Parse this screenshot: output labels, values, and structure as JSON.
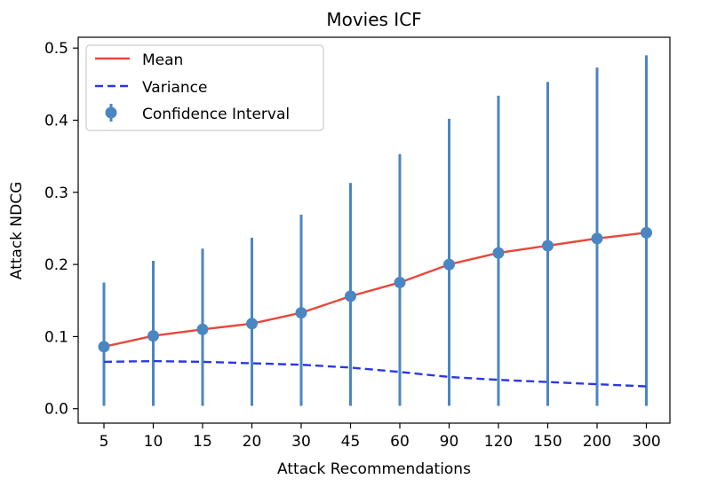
{
  "chart_data": {
    "type": "line",
    "title": "Movies ICF",
    "xlabel": "Attack Recommendations",
    "ylabel": "Attack NDCG",
    "categories": [
      "5",
      "10",
      "15",
      "20",
      "30",
      "45",
      "60",
      "90",
      "120",
      "150",
      "200",
      "300"
    ],
    "ylim": [
      -0.02,
      0.515
    ],
    "yticks": [
      "0.0",
      "0.1",
      "0.2",
      "0.3",
      "0.4",
      "0.5"
    ],
    "ytick_values": [
      0.0,
      0.1,
      0.2,
      0.3,
      0.4,
      0.5
    ],
    "grid": false,
    "legend_position": "top-left",
    "series": [
      {
        "name": "Mean",
        "style": "solid",
        "color": "#e8483a",
        "values": [
          0.086,
          0.101,
          0.11,
          0.118,
          0.133,
          0.156,
          0.175,
          0.2,
          0.216,
          0.226,
          0.236,
          0.244
        ]
      },
      {
        "name": "Variance",
        "style": "dashed",
        "color": "#2b37e8",
        "values": [
          0.065,
          0.066,
          0.065,
          0.063,
          0.061,
          0.057,
          0.051,
          0.044,
          0.04,
          0.037,
          0.034,
          0.031
        ]
      },
      {
        "name": "Confidence Interval",
        "style": "errorbar",
        "color": "#4a86c2",
        "values": [
          0.086,
          0.101,
          0.11,
          0.118,
          0.133,
          0.156,
          0.175,
          0.2,
          0.216,
          0.226,
          0.236,
          0.244
        ],
        "lower": [
          0.004,
          0.004,
          0.004,
          0.004,
          0.004,
          0.004,
          0.004,
          0.004,
          0.004,
          0.004,
          0.004,
          0.004
        ],
        "upper": [
          0.175,
          0.205,
          0.222,
          0.237,
          0.269,
          0.313,
          0.353,
          0.402,
          0.434,
          0.453,
          0.473,
          0.49
        ]
      }
    ]
  }
}
